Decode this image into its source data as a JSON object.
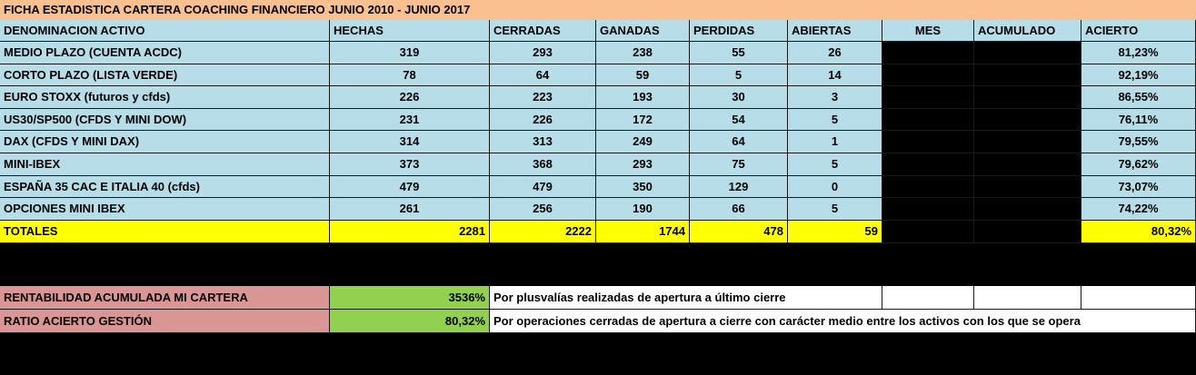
{
  "title": "FICHA ESTADISTICA CARTERA COACHING FINANCIERO JUNIO 2010 - JUNIO  2017",
  "headers": [
    "DENOMINACION ACTIVO",
    "HECHAS",
    "CERRADAS",
    "GANADAS",
    "PERDIDAS",
    "ABIERTAS",
    "MES",
    "ACUMULADO",
    "ACIERTO"
  ],
  "rows": [
    {
      "name": "MEDIO PLAZO (CUENTA ACDC)",
      "hechas": "319",
      "cerradas": "293",
      "ganadas": "238",
      "perdidas": "55",
      "abiertas": "26",
      "acierto": "81,23%"
    },
    {
      "name": "CORTO PLAZO (LISTA VERDE)",
      "hechas": "78",
      "cerradas": "64",
      "ganadas": "59",
      "perdidas": "5",
      "abiertas": "14",
      "acierto": "92,19%"
    },
    {
      "name": "EURO STOXX (futuros y cfds)",
      "hechas": "226",
      "cerradas": "223",
      "ganadas": "193",
      "perdidas": "30",
      "abiertas": "3",
      "acierto": "86,55%"
    },
    {
      "name": "US30/SP500 (CFDS Y MINI DOW)",
      "hechas": "231",
      "cerradas": "226",
      "ganadas": "172",
      "perdidas": "54",
      "abiertas": "5",
      "acierto": "76,11%"
    },
    {
      "name": "DAX (CFDS Y MINI DAX)",
      "hechas": "314",
      "cerradas": "313",
      "ganadas": "249",
      "perdidas": "64",
      "abiertas": "1",
      "acierto": "79,55%"
    },
    {
      "name": "MINI-IBEX",
      "hechas": "373",
      "cerradas": "368",
      "ganadas": "293",
      "perdidas": "75",
      "abiertas": "5",
      "acierto": "79,62%"
    },
    {
      "name": "ESPAÑA 35  CAC E ITALIA 40 (cfds)",
      "hechas": "479",
      "cerradas": "479",
      "ganadas": "350",
      "perdidas": "129",
      "abiertas": "0",
      "acierto": "73,07%"
    },
    {
      "name": "OPCIONES MINI IBEX",
      "hechas": "261",
      "cerradas": "256",
      "ganadas": "190",
      "perdidas": "66",
      "abiertas": "5",
      "acierto": "74,22%"
    }
  ],
  "totals": {
    "label": "TOTALES",
    "hechas": "2281",
    "cerradas": "2222",
    "ganadas": "1744",
    "perdidas": "478",
    "abiertas": "59",
    "acierto": "80,32%"
  },
  "summary": [
    {
      "label": "RENTABILIDAD ACUMULADA MI  CARTERA",
      "value": "3536%",
      "note": "Por plusvalías realizadas de apertura a último cierre"
    },
    {
      "label": "RATIO ACIERTO GESTIÓN",
      "value": "80,32%",
      "note": "Por operaciones cerradas de apertura a cierre con carácter medio entre los activos con los que se opera"
    }
  ],
  "colors": {
    "header_bg": "#fac090",
    "table_bg": "#b7dde8",
    "totals_bg": "#ffff00",
    "summary_label_bg": "#d99694",
    "summary_value_bg": "#92d050",
    "redacted": "#000000"
  }
}
